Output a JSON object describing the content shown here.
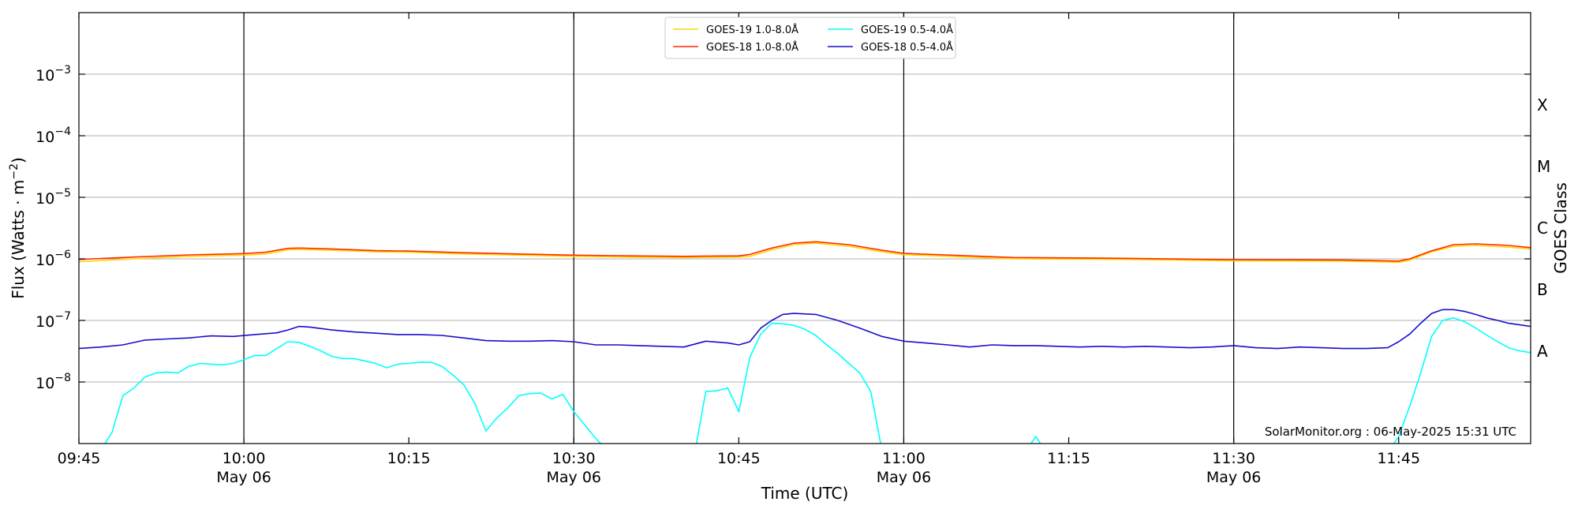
{
  "chart_data": {
    "type": "line",
    "xlabel": "Time (UTC)",
    "ylabel": "Flux (Watts · m",
    "ylabel_exp": "−2",
    "ylabel_close": ")",
    "y2label": "GOES Class",
    "ylim": [
      1e-09,
      0.01
    ],
    "yscale": "log",
    "grid": "horizontal at decades",
    "legend": "top-center",
    "credit": "SolarMonitor.org : 06-May-2025 15:31 UTC",
    "x_range": [
      "09:45",
      "11:57"
    ],
    "x_ticks": [
      {
        "t": "09:45",
        "label": "09:45",
        "sub": ""
      },
      {
        "t": "10:00",
        "label": "10:00",
        "sub": "May 06"
      },
      {
        "t": "10:15",
        "label": "10:15",
        "sub": ""
      },
      {
        "t": "10:30",
        "label": "10:30",
        "sub": "May 06"
      },
      {
        "t": "10:45",
        "label": "10:45",
        "sub": ""
      },
      {
        "t": "11:00",
        "label": "11:00",
        "sub": "May 06"
      },
      {
        "t": "11:15",
        "label": "11:15",
        "sub": ""
      },
      {
        "t": "11:30",
        "label": "11:30",
        "sub": "May 06"
      },
      {
        "t": "11:45",
        "label": "11:45",
        "sub": ""
      }
    ],
    "vlines": [
      "10:00",
      "10:30",
      "11:00",
      "11:30"
    ],
    "y_ticks": [
      {
        "value": 1e-08,
        "base": "10",
        "exp": "−8"
      },
      {
        "value": 1e-07,
        "base": "10",
        "exp": "−7"
      },
      {
        "value": 1e-06,
        "base": "10",
        "exp": "−6"
      },
      {
        "value": 1e-05,
        "base": "10",
        "exp": "−5"
      },
      {
        "value": 0.0001,
        "base": "10",
        "exp": "−4"
      },
      {
        "value": 0.001,
        "base": "10",
        "exp": "−3"
      }
    ],
    "goes_classes": [
      {
        "label": "A",
        "value": 1e-08
      },
      {
        "label": "B",
        "value": 1e-07
      },
      {
        "label": "C",
        "value": 1e-06
      },
      {
        "label": "M",
        "value": 1e-05
      },
      {
        "label": "X",
        "value": 0.0001
      }
    ],
    "series": [
      {
        "name": "GOES-19 1.0-8.0Å",
        "color": "#ffd700",
        "x": [
          "09:45",
          "09:50",
          "09:55",
          "10:00",
          "10:02",
          "10:04",
          "10:05",
          "10:08",
          "10:12",
          "10:15",
          "10:20",
          "10:25",
          "10:30",
          "10:35",
          "10:40",
          "10:45",
          "10:46",
          "10:48",
          "10:50",
          "10:52",
          "10:55",
          "10:58",
          "11:00",
          "11:10",
          "11:20",
          "11:30",
          "11:40",
          "11:45",
          "11:46",
          "11:48",
          "11:50",
          "11:52",
          "11:55",
          "11:57"
        ],
        "y": [
          9e-07,
          1e-06,
          1.1e-06,
          1.15e-06,
          1.2e-06,
          1.4e-06,
          1.42e-06,
          1.38e-06,
          1.3e-06,
          1.28e-06,
          1.2e-06,
          1.15e-06,
          1.1e-06,
          1.07e-06,
          1.05e-06,
          1.07e-06,
          1.1e-06,
          1.4e-06,
          1.7e-06,
          1.8e-06,
          1.6e-06,
          1.3e-06,
          1.17e-06,
          1e-06,
          9.8e-07,
          9.3e-07,
          9.2e-07,
          8.8e-07,
          9.5e-07,
          1.3e-06,
          1.6e-06,
          1.65e-06,
          1.55e-06,
          1.45e-06
        ]
      },
      {
        "name": "GOES-18 1.0-8.0Å",
        "color": "#ff2a00",
        "x": [
          "09:45",
          "09:50",
          "09:55",
          "10:00",
          "10:02",
          "10:04",
          "10:05",
          "10:08",
          "10:12",
          "10:15",
          "10:20",
          "10:25",
          "10:30",
          "10:35",
          "10:40",
          "10:45",
          "10:46",
          "10:48",
          "10:50",
          "10:52",
          "10:55",
          "10:58",
          "11:00",
          "11:10",
          "11:20",
          "11:30",
          "11:40",
          "11:45",
          "11:46",
          "11:48",
          "11:50",
          "11:52",
          "11:55",
          "11:57"
        ],
        "y": [
          9.8e-07,
          1.07e-06,
          1.16e-06,
          1.22e-06,
          1.28e-06,
          1.48e-06,
          1.5e-06,
          1.45e-06,
          1.36e-06,
          1.34e-06,
          1.26e-06,
          1.2e-06,
          1.15e-06,
          1.12e-06,
          1.1e-06,
          1.12e-06,
          1.18e-06,
          1.5e-06,
          1.8e-06,
          1.9e-06,
          1.7e-06,
          1.38e-06,
          1.23e-06,
          1.05e-06,
          1.02e-06,
          9.7e-07,
          9.6e-07,
          9.2e-07,
          1e-06,
          1.35e-06,
          1.7e-06,
          1.75e-06,
          1.65e-06,
          1.52e-06
        ]
      },
      {
        "name": "GOES-19 0.5-4.0Å",
        "color": "#00ffff",
        "x": [
          "09:45",
          "09:46",
          "09:47",
          "09:48",
          "09:49",
          "09:50",
          "09:51",
          "09:52",
          "09:53",
          "09:54",
          "09:55",
          "09:56",
          "09:57",
          "09:58",
          "09:59",
          "10:00",
          "10:01",
          "10:02",
          "10:03",
          "10:04",
          "10:05",
          "10:06",
          "10:07",
          "10:08",
          "10:09",
          "10:10",
          "10:11",
          "10:12",
          "10:13",
          "10:14",
          "10:15",
          "10:16",
          "10:17",
          "10:18",
          "10:19",
          "10:20",
          "10:21",
          "10:22",
          "10:23",
          "10:24",
          "10:25",
          "10:26",
          "10:27",
          "10:28",
          "10:29",
          "10:30",
          "10:31",
          "10:32",
          "10:33",
          "10:34",
          "10:41",
          "10:42",
          "10:43",
          "10:44",
          "10:45",
          "10:46",
          "10:47",
          "10:48",
          "10:49",
          "10:50",
          "10:51",
          "10:52",
          "10:53",
          "10:54",
          "10:55",
          "10:56",
          "10:57",
          "10:58",
          "10:59",
          "11:00",
          "11:11",
          "11:12",
          "11:13",
          "11:44",
          "11:45",
          "11:46",
          "11:47",
          "11:48",
          "11:49",
          "11:50",
          "11:51",
          "11:52",
          "11:53",
          "11:54",
          "11:55",
          "11:56",
          "11:57"
        ],
        "y": [
          7e-10,
          7e-10,
          8e-10,
          1.5e-09,
          6e-09,
          8e-09,
          1.2e-08,
          1.4e-08,
          1.45e-08,
          1.4e-08,
          1.8e-08,
          2e-08,
          1.95e-08,
          1.9e-08,
          2e-08,
          2.3e-08,
          2.7e-08,
          2.7e-08,
          3.5e-08,
          4.5e-08,
          4.4e-08,
          3.8e-08,
          3.2e-08,
          2.6e-08,
          2.4e-08,
          2.4e-08,
          2.2e-08,
          2e-08,
          1.7e-08,
          1.95e-08,
          2e-08,
          2.1e-08,
          2.1e-08,
          1.8e-08,
          1.3e-08,
          9e-09,
          4.5e-09,
          1.6e-09,
          2.6e-09,
          3.8e-09,
          6e-09,
          6.5e-09,
          6.6e-09,
          5.3e-09,
          6.3e-09,
          3.3e-09,
          2e-09,
          1.2e-09,
          8e-10,
          7e-10,
          7e-10,
          7e-09,
          7.2e-09,
          8e-09,
          3.3e-09,
          2.5e-08,
          6e-08,
          9e-08,
          8.8e-08,
          8.3e-08,
          7.2e-08,
          5.7e-08,
          4e-08,
          2.9e-08,
          2e-08,
          1.4e-08,
          7e-09,
          8e-10,
          7e-10,
          7e-10,
          7e-10,
          1.3e-09,
          7e-10,
          7e-10,
          1.3e-09,
          4e-09,
          1.4e-08,
          5.5e-08,
          1e-07,
          1.1e-07,
          9.5e-08,
          7.5e-08,
          5.8e-08,
          4.5e-08,
          3.6e-08,
          3.2e-08,
          3e-08
        ]
      },
      {
        "name": "GOES-18 0.5-4.0Å",
        "color": "#1a0dcc",
        "x": [
          "09:45",
          "09:47",
          "09:49",
          "09:51",
          "09:53",
          "09:55",
          "09:57",
          "09:59",
          "10:01",
          "10:03",
          "10:04",
          "10:05",
          "10:06",
          "10:08",
          "10:10",
          "10:12",
          "10:14",
          "10:16",
          "10:18",
          "10:20",
          "10:22",
          "10:24",
          "10:26",
          "10:28",
          "10:30",
          "10:32",
          "10:34",
          "10:36",
          "10:38",
          "10:40",
          "10:42",
          "10:44",
          "10:45",
          "10:46",
          "10:47",
          "10:48",
          "10:49",
          "10:50",
          "10:52",
          "10:54",
          "10:56",
          "10:58",
          "11:00",
          "11:02",
          "11:04",
          "11:06",
          "11:08",
          "11:10",
          "11:12",
          "11:14",
          "11:16",
          "11:18",
          "11:20",
          "11:22",
          "11:24",
          "11:26",
          "11:28",
          "11:30",
          "11:32",
          "11:34",
          "11:36",
          "11:38",
          "11:40",
          "11:42",
          "11:44",
          "11:45",
          "11:46",
          "11:47",
          "11:48",
          "11:49",
          "11:50",
          "11:51",
          "11:52",
          "11:53",
          "11:54",
          "11:55",
          "11:57"
        ],
        "y": [
          3.5e-08,
          3.7e-08,
          4e-08,
          4.8e-08,
          5e-08,
          5.2e-08,
          5.6e-08,
          5.5e-08,
          5.9e-08,
          6.3e-08,
          7e-08,
          8e-08,
          7.8e-08,
          7e-08,
          6.5e-08,
          6.2e-08,
          5.9e-08,
          5.9e-08,
          5.7e-08,
          5.2e-08,
          4.7e-08,
          4.6e-08,
          4.6e-08,
          4.7e-08,
          4.5e-08,
          4e-08,
          4e-08,
          3.9e-08,
          3.8e-08,
          3.7e-08,
          4.6e-08,
          4.3e-08,
          4e-08,
          4.5e-08,
          7.5e-08,
          1e-07,
          1.25e-07,
          1.3e-07,
          1.25e-07,
          1e-07,
          7.5e-08,
          5.5e-08,
          4.6e-08,
          4.3e-08,
          4e-08,
          3.7e-08,
          4e-08,
          3.9e-08,
          3.9e-08,
          3.8e-08,
          3.7e-08,
          3.8e-08,
          3.7e-08,
          3.8e-08,
          3.7e-08,
          3.6e-08,
          3.7e-08,
          3.9e-08,
          3.6e-08,
          3.5e-08,
          3.7e-08,
          3.6e-08,
          3.5e-08,
          3.5e-08,
          3.6e-08,
          4.5e-08,
          6e-08,
          9e-08,
          1.3e-07,
          1.5e-07,
          1.5e-07,
          1.4e-07,
          1.25e-07,
          1.1e-07,
          1e-07,
          9e-08,
          8e-08
        ]
      }
    ]
  }
}
